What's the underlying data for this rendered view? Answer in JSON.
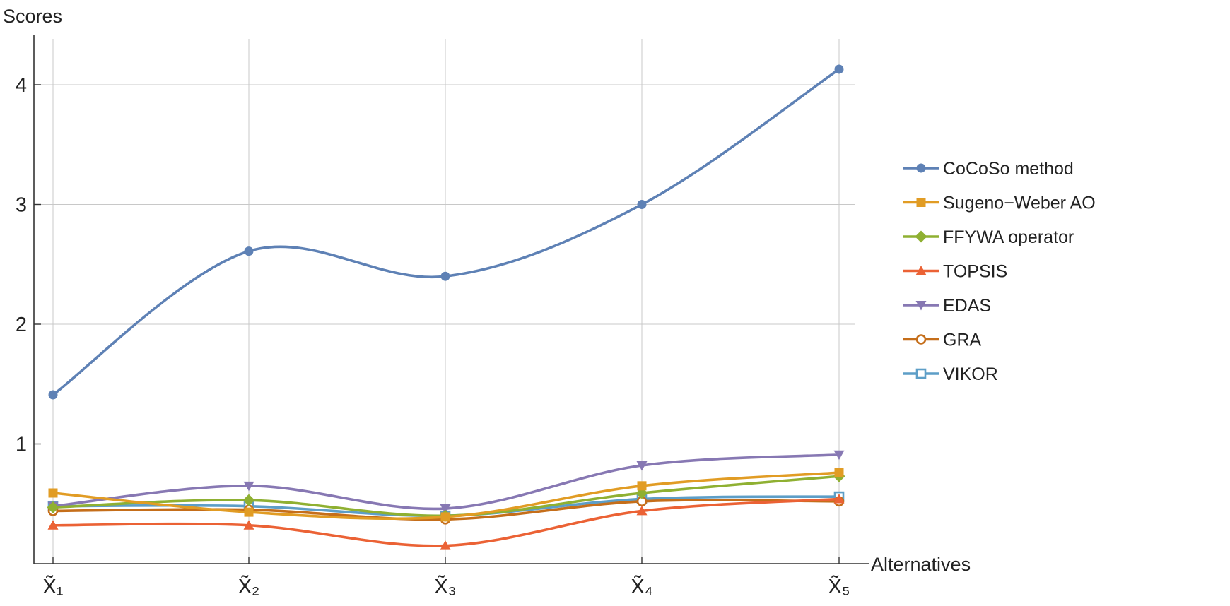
{
  "chart_data": {
    "type": "line",
    "xlabel": "Alternatives",
    "ylabel": "Scores",
    "categories": [
      "X̃₁",
      "X̃₂",
      "X̃₃",
      "X̃₄",
      "X̃₅"
    ],
    "xlim": [
      1,
      5
    ],
    "ylim": [
      0,
      4.35
    ],
    "yticks": [
      1,
      2,
      3,
      4
    ],
    "grid": true,
    "legend_position": "right",
    "series": [
      {
        "name": "CoCoSo method",
        "values": [
          1.41,
          2.61,
          2.4,
          3.0,
          4.13
        ],
        "color": "#5e81b5",
        "marker": "circle"
      },
      {
        "name": "Sugeno−Weber AO",
        "values": [
          0.59,
          0.43,
          0.39,
          0.65,
          0.76
        ],
        "color": "#e19c24",
        "marker": "square"
      },
      {
        "name": "FFYWA operator",
        "values": [
          0.47,
          0.53,
          0.4,
          0.59,
          0.73
        ],
        "color": "#8fb032",
        "marker": "diamond"
      },
      {
        "name": "TOPSIS",
        "values": [
          0.32,
          0.32,
          0.15,
          0.44,
          0.54
        ],
        "color": "#eb6235",
        "marker": "triangle-up"
      },
      {
        "name": "EDAS",
        "values": [
          0.48,
          0.65,
          0.46,
          0.82,
          0.91
        ],
        "color": "#8778b3",
        "marker": "triangle-down"
      },
      {
        "name": "GRA",
        "values": [
          0.44,
          0.45,
          0.37,
          0.52,
          0.52
        ],
        "color": "#c56e1a",
        "marker": "circle-open"
      },
      {
        "name": "VIKOR",
        "values": [
          0.48,
          0.48,
          0.4,
          0.54,
          0.56
        ],
        "color": "#5d9ec7",
        "marker": "square-open"
      }
    ]
  }
}
